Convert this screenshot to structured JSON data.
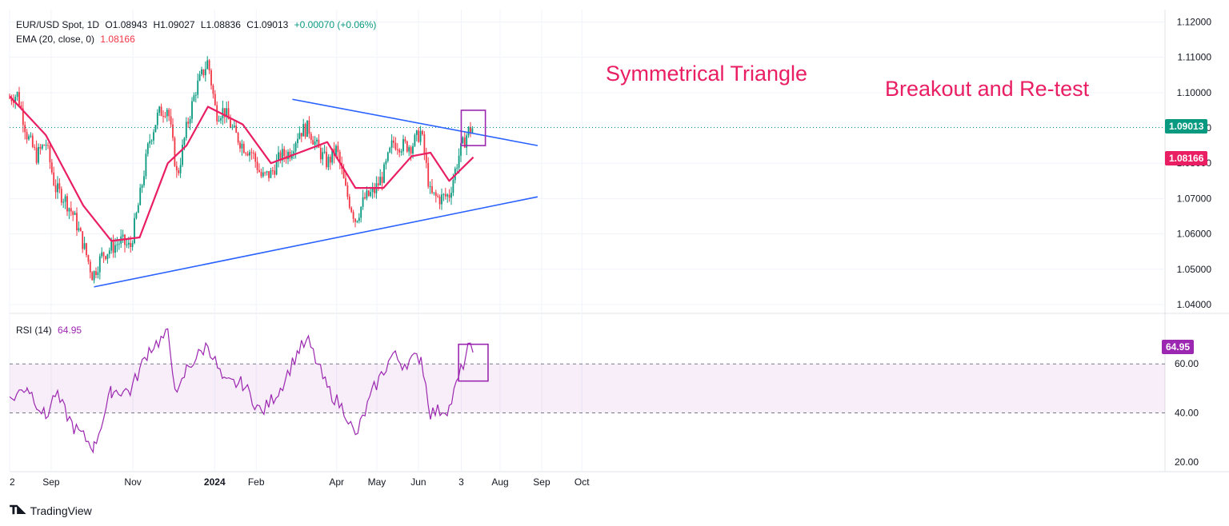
{
  "header": {
    "symbol": "EUR/USD Spot, 1D",
    "open": "O1.08943",
    "high": "H1.09027",
    "low": "L1.08836",
    "close": "C1.09013",
    "change": "+0.00070 (+0.06%)",
    "ema_label": "EMA (20, close, 0)",
    "ema_value": "1.08166",
    "rsi_label": "RSI (14)",
    "rsi_value": "64.95"
  },
  "price_tags": {
    "last": "1.09013",
    "ema": "1.08166",
    "rsi": "64.95"
  },
  "annotations": {
    "pattern": "Symmetrical Triangle",
    "breakout": "Breakout and Re-test"
  },
  "footer": {
    "brand": "TradingView"
  },
  "colors": {
    "up": "#089981",
    "down": "#f23645",
    "ema": "#e91e63",
    "trendline": "#2962ff",
    "rsi": "#9c27b0",
    "box": "#9c27b0",
    "annotation": "#e91e63"
  },
  "chart_data": {
    "type": "candlestick",
    "price_axis": {
      "ticks": [
        "1.12000",
        "1.11000",
        "1.10000",
        "1.09000",
        "1.08000",
        "1.07000",
        "1.06000",
        "1.05000",
        "1.04000"
      ],
      "range": [
        1.0375,
        1.1235
      ]
    },
    "time_axis": {
      "labels": [
        "2",
        "Sep",
        "Nov",
        "2024",
        "Feb",
        "Apr",
        "May",
        "Jun",
        "3",
        "Aug",
        "Sep",
        "Oct"
      ]
    },
    "close_path": [
      [
        "2023-08-01",
        1.0985
      ],
      [
        "2023-08-07",
        1.0995
      ],
      [
        "2023-08-14",
        1.088
      ],
      [
        "2023-08-21",
        1.082
      ],
      [
        "2023-08-28",
        1.086
      ],
      [
        "2023-09-04",
        1.073
      ],
      [
        "2023-09-11",
        1.07
      ],
      [
        "2023-09-18",
        1.065
      ],
      [
        "2023-09-25",
        1.057
      ],
      [
        "2023-10-02",
        1.048
      ],
      [
        "2023-10-09",
        1.054
      ],
      [
        "2023-10-16",
        1.056
      ],
      [
        "2023-10-23",
        1.058
      ],
      [
        "2023-10-30",
        1.056
      ],
      [
        "2023-11-06",
        1.07
      ],
      [
        "2023-11-13",
        1.086
      ],
      [
        "2023-11-20",
        1.094
      ],
      [
        "2023-11-27",
        1.096
      ],
      [
        "2023-12-04",
        1.076
      ],
      [
        "2023-12-11",
        1.09
      ],
      [
        "2023-12-18",
        1.101
      ],
      [
        "2023-12-27",
        1.109
      ],
      [
        "2024-01-02",
        1.094
      ],
      [
        "2024-01-08",
        1.095
      ],
      [
        "2024-01-15",
        1.089
      ],
      [
        "2024-01-22",
        1.085
      ],
      [
        "2024-01-29",
        1.083
      ],
      [
        "2024-02-05",
        1.076
      ],
      [
        "2024-02-12",
        1.077
      ],
      [
        "2024-02-19",
        1.082
      ],
      [
        "2024-02-26",
        1.083
      ],
      [
        "2024-03-04",
        1.089
      ],
      [
        "2024-03-11",
        1.09
      ],
      [
        "2024-03-18",
        1.084
      ],
      [
        "2024-03-25",
        1.08
      ],
      [
        "2024-04-01",
        1.084
      ],
      [
        "2024-04-08",
        1.072
      ],
      [
        "2024-04-15",
        1.064
      ],
      [
        "2024-04-22",
        1.07
      ],
      [
        "2024-04-29",
        1.072
      ],
      [
        "2024-05-06",
        1.077
      ],
      [
        "2024-05-13",
        1.086
      ],
      [
        "2024-05-20",
        1.085
      ],
      [
        "2024-05-27",
        1.085
      ],
      [
        "2024-06-03",
        1.089
      ],
      [
        "2024-06-10",
        1.071
      ],
      [
        "2024-06-17",
        1.07
      ],
      [
        "2024-06-24",
        1.071
      ],
      [
        "2024-07-01",
        1.082
      ],
      [
        "2024-07-08",
        1.089
      ],
      [
        "2024-07-12",
        1.0901
      ]
    ],
    "ema20": [
      [
        "2023-08-01",
        1.099
      ],
      [
        "2023-08-28",
        1.088
      ],
      [
        "2023-09-25",
        1.068
      ],
      [
        "2023-10-16",
        1.058
      ],
      [
        "2023-11-06",
        1.059
      ],
      [
        "2023-11-27",
        1.08
      ],
      [
        "2023-12-11",
        1.085
      ],
      [
        "2023-12-27",
        1.096
      ],
      [
        "2024-01-22",
        1.091
      ],
      [
        "2024-02-12",
        1.08
      ],
      [
        "2024-03-04",
        1.083
      ],
      [
        "2024-03-25",
        1.086
      ],
      [
        "2024-04-15",
        1.073
      ],
      [
        "2024-05-06",
        1.073
      ],
      [
        "2024-05-27",
        1.082
      ],
      [
        "2024-06-10",
        1.083
      ],
      [
        "2024-06-24",
        1.075
      ],
      [
        "2024-07-12",
        1.0817
      ]
    ],
    "trendlines": [
      {
        "from": [
          "2024-02-28",
          1.0981
        ],
        "to": [
          "2024-08-29",
          1.085
        ]
      },
      {
        "from": [
          "2023-10-03",
          1.045
        ],
        "to": [
          "2024-08-29",
          1.0705
        ]
      }
    ],
    "highlight_box": {
      "from": [
        "2024-07-03",
        1.085
      ],
      "to": [
        "2024-07-21",
        1.095
      ]
    },
    "rsi": {
      "ticks": [
        "60.00",
        "40.00",
        "20.00"
      ],
      "range": [
        18,
        78
      ],
      "levels": [
        60,
        40
      ],
      "values": [
        [
          "2023-08-01",
          45
        ],
        [
          "2023-08-14",
          51
        ],
        [
          "2023-08-28",
          38
        ],
        [
          "2023-09-04",
          48
        ],
        [
          "2023-09-18",
          34
        ],
        [
          "2023-10-03",
          26
        ],
        [
          "2023-10-16",
          49
        ],
        [
          "2023-10-30",
          49
        ],
        [
          "2023-11-13",
          66
        ],
        [
          "2023-11-27",
          72
        ],
        [
          "2023-12-04",
          46
        ],
        [
          "2023-12-11",
          58
        ],
        [
          "2023-12-27",
          68
        ],
        [
          "2024-01-08",
          52
        ],
        [
          "2024-01-22",
          52
        ],
        [
          "2024-02-05",
          40
        ],
        [
          "2024-02-19",
          50
        ],
        [
          "2024-03-04",
          66
        ],
        [
          "2024-03-11",
          69
        ],
        [
          "2024-03-25",
          50
        ],
        [
          "2024-04-08",
          40
        ],
        [
          "2024-04-15",
          30
        ],
        [
          "2024-04-29",
          50
        ],
        [
          "2024-05-13",
          64
        ],
        [
          "2024-05-20",
          60
        ],
        [
          "2024-06-03",
          63
        ],
        [
          "2024-06-10",
          40
        ],
        [
          "2024-06-24",
          42
        ],
        [
          "2024-07-01",
          54
        ],
        [
          "2024-07-08",
          66
        ],
        [
          "2024-07-12",
          65
        ]
      ],
      "box": {
        "from": [
          "2024-07-01",
          53
        ],
        "to": [
          "2024-07-23",
          68
        ]
      }
    }
  }
}
